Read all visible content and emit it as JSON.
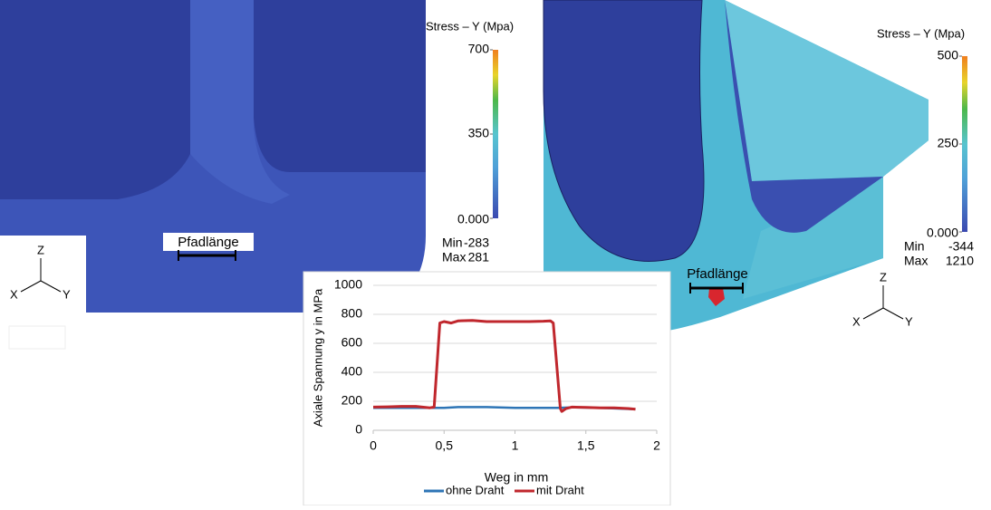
{
  "panels": [
    {
      "legend_title": "Stress – Y (Mpa)",
      "clim": [
        0,
        700
      ],
      "ticks": [
        700,
        350,
        {
          "value": 0,
          "label": "0.000"
        }
      ],
      "min_label": "Min",
      "min": -283,
      "max_label": "Max",
      "max": 281,
      "path_label": "Pfadlänge",
      "axes": [
        "Z",
        "X",
        "Y"
      ]
    },
    {
      "legend_title": "Stress – Y (Mpa)",
      "clim": [
        0,
        500
      ],
      "ticks": [
        500,
        250,
        {
          "value": 0,
          "label": "0.000"
        }
      ],
      "min_label": "Min",
      "min": -344,
      "max_label": "Max",
      "max": 1210,
      "path_label": "Pfadlänge",
      "axes": [
        "Z",
        "X",
        "Y"
      ]
    }
  ],
  "chart_data": {
    "type": "line",
    "x_label": "Weg in mm",
    "y_label": "Axiale Spannung y in MPa",
    "xlim": [
      0,
      2
    ],
    "xticks": [
      0,
      {
        "value": 0.5,
        "label": "0,5"
      },
      1,
      {
        "value": 1.5,
        "label": "1,5"
      },
      2
    ],
    "ylim": [
      0,
      1000
    ],
    "yticks": [
      0,
      200,
      400,
      600,
      800,
      1000
    ],
    "grid": true,
    "legend": "bottom",
    "series": [
      {
        "name": "ohne Draht",
        "color": "#2e75b6",
        "x": [
          0,
          0.5,
          0.6,
          0.8,
          1.0,
          1.3,
          1.4,
          1.6,
          1.85
        ],
        "values": [
          155,
          155,
          160,
          160,
          155,
          155,
          158,
          155,
          145
        ]
      },
      {
        "name": "mit Draht",
        "color": "#c0272d",
        "x": [
          0,
          0.1,
          0.2,
          0.3,
          0.4,
          0.43,
          0.47,
          0.5,
          0.55,
          0.6,
          0.7,
          0.8,
          0.9,
          1.0,
          1.1,
          1.2,
          1.25,
          1.27,
          1.32,
          1.33,
          1.36,
          1.4,
          1.5,
          1.6,
          1.7,
          1.8,
          1.85
        ],
        "values": [
          160,
          162,
          165,
          165,
          155,
          160,
          740,
          750,
          740,
          755,
          758,
          750,
          750,
          750,
          750,
          752,
          755,
          740,
          150,
          130,
          150,
          160,
          158,
          155,
          155,
          150,
          145
        ]
      }
    ]
  }
}
